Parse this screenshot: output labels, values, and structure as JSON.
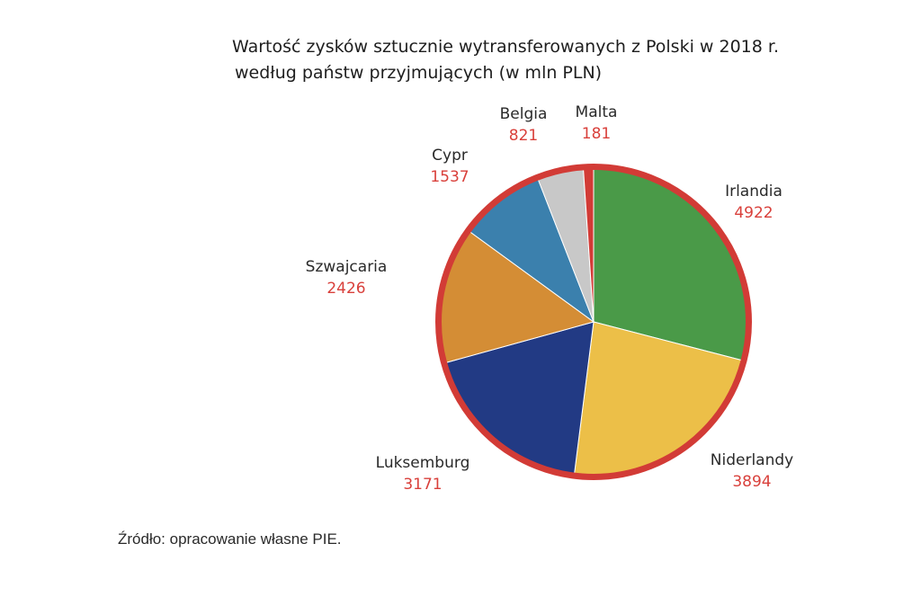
{
  "title_line1": "Wartość zysków sztucznie wytransferowanych z Polski w 2018 r.",
  "title_line2": "według państw przyjmujących (w mln PLN)",
  "source": "Źródło: opracowanie własne PIE.",
  "chart_data": {
    "type": "pie",
    "title": "Wartość zysków sztucznie wytransferowanych z Polski w 2018 r. według państw przyjmujących (w mln PLN)",
    "categories": [
      "Irlandia",
      "Niderlandy",
      "Luksemburg",
      "Szwajcaria",
      "Cypr",
      "Belgia",
      "Malta"
    ],
    "values": [
      4922,
      3894,
      3171,
      2426,
      1537,
      821,
      181
    ],
    "value_labels": [
      "4922",
      "3894",
      "3171",
      "2426",
      "1537",
      "821",
      "181"
    ],
    "colors": [
      "#4a9a48",
      "#ecbf48",
      "#223a84",
      "#d48d35",
      "#3b80ad",
      "#c8c8c8",
      "#d23b36"
    ],
    "rim_color": "#d23b36",
    "label_color": "#2a2a2a",
    "value_color": "#d9403b",
    "legend": "none"
  }
}
